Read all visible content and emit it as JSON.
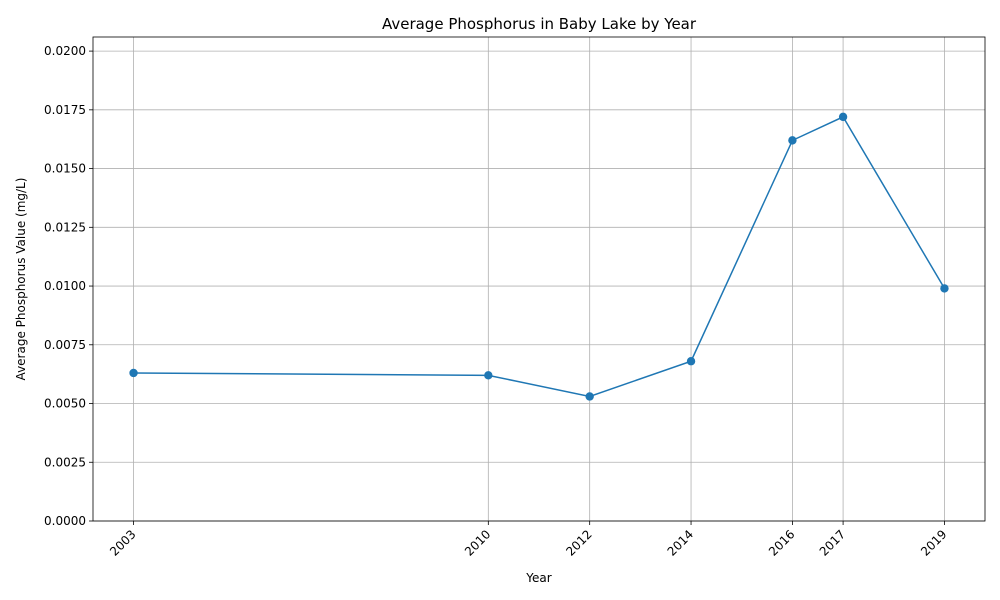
{
  "chart_data": {
    "type": "line",
    "title": "Average Phosphorus in Baby Lake by Year",
    "xlabel": "Year",
    "ylabel": "Average Phosphorus Value (mg/L)",
    "x": [
      2003,
      2010,
      2012,
      2014,
      2016,
      2017,
      2019
    ],
    "x_tick_labels": [
      "2003",
      "2010",
      "2012",
      "2014",
      "2016",
      "2017",
      "2019"
    ],
    "xlim": [
      2002.2,
      2019.8
    ],
    "ylim": [
      0,
      0.0206
    ],
    "y_ticks": [
      0,
      0.0025,
      0.005,
      0.0075,
      0.01,
      0.0125,
      0.015,
      0.0175,
      0.02
    ],
    "y_tick_labels": [
      "0.0000",
      "0.0025",
      "0.0050",
      "0.0075",
      "0.0100",
      "0.0125",
      "0.0150",
      "0.0175",
      "0.0200"
    ],
    "series": [
      {
        "values": [
          0.0063,
          0.0062,
          0.0053,
          0.0068,
          0.0162,
          0.0172,
          0.0099
        ],
        "color": "#1f77b4",
        "marker": "circle"
      }
    ],
    "grid": true,
    "legend": "none"
  }
}
